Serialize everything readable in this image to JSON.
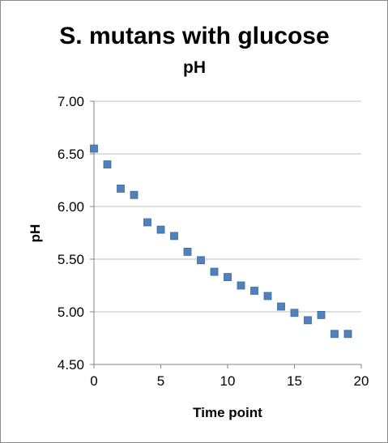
{
  "chart_data": {
    "type": "scatter",
    "title": "S. mutans with glucose",
    "subtitle": "pH",
    "xlabel": "Time point",
    "ylabel": "pH",
    "xlim": [
      0,
      20
    ],
    "ylim": [
      4.5,
      7.0
    ],
    "x_ticks": [
      "0",
      "5",
      "10",
      "15",
      "20"
    ],
    "y_ticks": [
      "4.50",
      "5.00",
      "5.50",
      "6.00",
      "6.50",
      "7.00"
    ],
    "grid": "horizontal",
    "legend": "none",
    "marker": "square",
    "marker_color": "#4f81bd",
    "series": [
      {
        "x": [
          0,
          1,
          2,
          3,
          4,
          5,
          6,
          7,
          8,
          9,
          10,
          11,
          12,
          13,
          14,
          15,
          16,
          17,
          18,
          19
        ],
        "y": [
          6.55,
          6.4,
          6.17,
          6.11,
          5.85,
          5.78,
          5.72,
          5.57,
          5.49,
          5.38,
          5.33,
          5.25,
          5.2,
          5.15,
          5.05,
          4.99,
          4.92,
          4.97,
          4.79,
          4.79
        ]
      }
    ]
  }
}
